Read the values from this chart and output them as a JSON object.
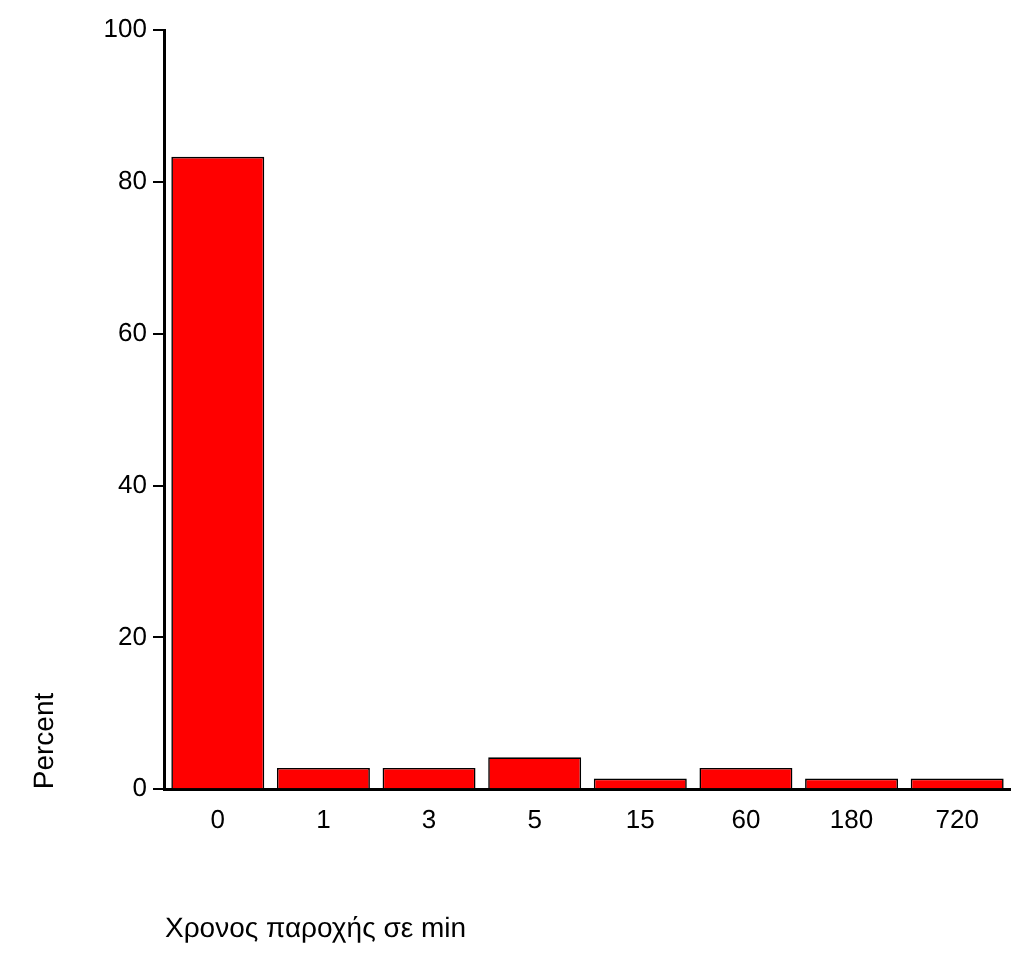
{
  "chart_data": {
    "type": "bar",
    "xlabel": "Χρονος παροχής σε min",
    "ylabel": "Percent",
    "categories": [
      "0",
      "1",
      "3",
      "5",
      "15",
      "60",
      "180",
      "720"
    ],
    "values": [
      83.3,
      2.8,
      2.8,
      4.2,
      1.4,
      2.8,
      1.4,
      1.4
    ],
    "color": "#ff0000",
    "ylim": [
      0,
      100
    ],
    "yticks": [
      0,
      20,
      40,
      60,
      80,
      100
    ],
    "grid": false,
    "legend": false
  }
}
